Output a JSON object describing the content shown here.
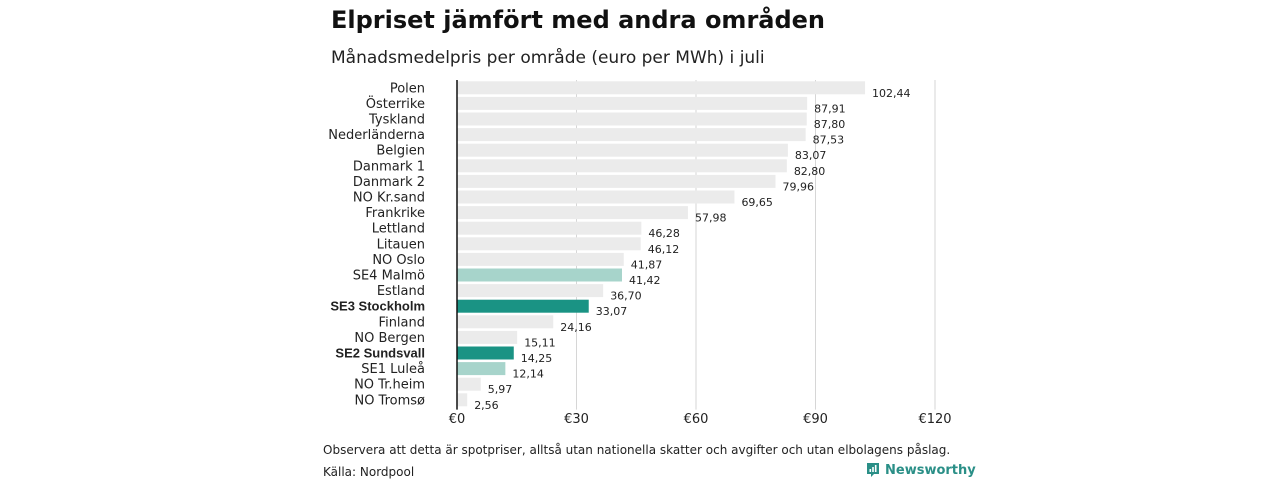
{
  "header": {
    "title": "Elpriset jämfört med andra områden",
    "subtitle": "Månadsmedelpris per område (euro per MWh) i juli"
  },
  "footer": {
    "note": "Observera att detta är spotpriser, alltså utan nationella skatter och avgifter och utan elbolagens påslag.",
    "source": "Källa: Nordpool",
    "brand": "Newsworthy"
  },
  "colors": {
    "default_bar": "#ebebeb",
    "highlight_bar": "#1a9384",
    "light_highlight_bar": "#a7d4cb",
    "grid": "#d6d6d6",
    "axis": "#111111"
  },
  "chart_data": {
    "type": "bar",
    "orientation": "horizontal",
    "xlim": [
      0,
      120
    ],
    "xticks": [
      0,
      30,
      60,
      90,
      120
    ],
    "xtick_labels": [
      "€0",
      "€30",
      "€60",
      "€90",
      "€120"
    ],
    "grid": true,
    "categories": [
      "Polen",
      "Österrike",
      "Tyskland",
      "Nederländerna",
      "Belgien",
      "Danmark  1",
      "Danmark  2",
      "NO Kr.sand",
      "Frankrike",
      "Lettland",
      "Litauen",
      "NO Oslo",
      "SE4  Malmö",
      "Estland",
      "SE3 Stockholm",
      "Finland",
      "NO Bergen",
      "SE2 Sundsvall",
      "SE1  Luleå",
      "NO Tr.heim",
      "NO Tromsø"
    ],
    "values": [
      102.44,
      87.91,
      87.8,
      87.53,
      83.07,
      82.8,
      79.96,
      69.65,
      57.98,
      46.28,
      46.12,
      41.87,
      41.42,
      36.7,
      33.07,
      24.16,
      15.11,
      14.25,
      12.14,
      5.97,
      2.56
    ],
    "value_labels": [
      "102,44",
      "87,91",
      "87,80",
      "87,53",
      "83,07",
      "82,80",
      "79,96",
      "69,65",
      "57,98",
      "46,28",
      "46,12",
      "41,87",
      "41,42",
      "36,70",
      "33,07",
      "24,16",
      "15,11",
      "14,25",
      "12,14",
      "5,97",
      "2,56"
    ],
    "highlight": [
      "none",
      "none",
      "none",
      "none",
      "none",
      "none",
      "none",
      "none",
      "none",
      "none",
      "none",
      "none",
      "light",
      "none",
      "strong",
      "none",
      "none",
      "strong",
      "light",
      "none",
      "none"
    ]
  }
}
